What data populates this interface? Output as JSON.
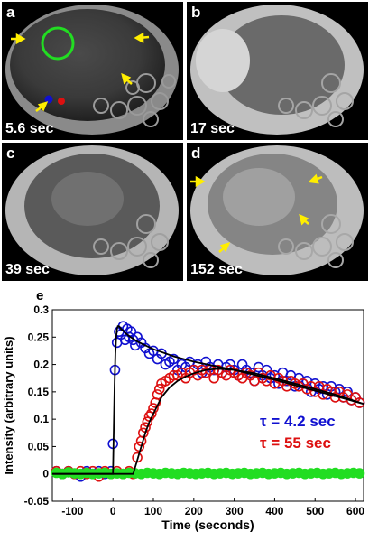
{
  "panels": [
    {
      "label": "a",
      "time": "5.6 sec"
    },
    {
      "label": "b",
      "time": "17 sec"
    },
    {
      "label": "c",
      "time": "39 sec"
    },
    {
      "label": "d",
      "time": "152 sec"
    }
  ],
  "colors": {
    "arrow": "#ffee00",
    "roi_circle": "#22dd22",
    "series_blue": "#1010d0",
    "series_red": "#dd1010",
    "series_green": "#22dd22",
    "fit": "#000000"
  },
  "chart_data": {
    "type": "scatter",
    "panel_label": "e",
    "xlabel": "Time (seconds)",
    "ylabel": "Intensity (arbitrary units)",
    "xlim": [
      -150,
      620
    ],
    "ylim": [
      -0.05,
      0.3
    ],
    "xticks": [
      "-100",
      "0",
      "100",
      "200",
      "300",
      "400",
      "500",
      "600"
    ],
    "yticks": [
      "-0.05",
      "0",
      "0.05",
      "0.1",
      "0.15",
      "0.2",
      "0.25",
      "0.3"
    ],
    "annotations": [
      {
        "text": "τ = 4.2 sec",
        "color": "#1010d0"
      },
      {
        "text": "τ = 55 sec",
        "color": "#dd1010"
      }
    ],
    "series": [
      {
        "color": "#1010d0",
        "marker": "circle-open",
        "x": [
          -140,
          -125,
          -110,
          -95,
          -80,
          -65,
          -50,
          -35,
          -20,
          -5,
          0,
          5,
          10,
          15,
          20,
          25,
          30,
          35,
          40,
          45,
          50,
          55,
          60,
          70,
          80,
          90,
          100,
          110,
          120,
          130,
          140,
          150,
          160,
          170,
          180,
          190,
          200,
          210,
          220,
          230,
          240,
          250,
          260,
          270,
          280,
          290,
          300,
          310,
          320,
          330,
          340,
          350,
          360,
          370,
          380,
          390,
          400,
          410,
          420,
          430,
          440,
          450,
          460,
          470,
          480,
          490,
          500,
          510,
          520,
          530,
          540,
          550,
          560,
          570,
          580,
          590,
          600,
          610
        ],
        "y": [
          0.005,
          0.0,
          0.005,
          0.0,
          -0.005,
          0.005,
          0.0,
          0.005,
          0.0,
          0.005,
          0.055,
          0.19,
          0.24,
          0.26,
          0.255,
          0.27,
          0.245,
          0.265,
          0.25,
          0.26,
          0.245,
          0.235,
          0.25,
          0.24,
          0.23,
          0.22,
          0.225,
          0.21,
          0.22,
          0.2,
          0.205,
          0.21,
          0.19,
          0.2,
          0.195,
          0.205,
          0.19,
          0.2,
          0.185,
          0.205,
          0.195,
          0.19,
          0.2,
          0.185,
          0.195,
          0.2,
          0.19,
          0.18,
          0.2,
          0.19,
          0.185,
          0.17,
          0.195,
          0.18,
          0.19,
          0.175,
          0.18,
          0.165,
          0.185,
          0.17,
          0.18,
          0.16,
          0.175,
          0.165,
          0.17,
          0.15,
          0.165,
          0.155,
          0.16,
          0.145,
          0.16,
          0.15,
          0.155,
          0.14,
          0.15,
          0.135,
          0.14,
          0.13
        ]
      },
      {
        "color": "#dd1010",
        "marker": "circle-open",
        "x": [
          -140,
          -125,
          -110,
          -95,
          -80,
          -65,
          -50,
          -35,
          -20,
          -5,
          10,
          25,
          40,
          50,
          60,
          65,
          70,
          75,
          80,
          85,
          90,
          95,
          100,
          105,
          110,
          115,
          120,
          130,
          140,
          150,
          160,
          170,
          180,
          190,
          200,
          210,
          220,
          230,
          240,
          250,
          260,
          270,
          280,
          290,
          300,
          310,
          320,
          330,
          340,
          350,
          360,
          370,
          380,
          390,
          400,
          410,
          420,
          430,
          440,
          450,
          460,
          470,
          480,
          490,
          500,
          510,
          520,
          530,
          540,
          550,
          560,
          570,
          580,
          590,
          600,
          610
        ],
        "y": [
          0.005,
          0.0,
          0.005,
          0.0,
          0.005,
          0.0,
          0.005,
          -0.005,
          0.005,
          0.0,
          0.005,
          0.0,
          0.005,
          0.0,
          0.03,
          0.05,
          0.06,
          0.075,
          0.085,
          0.095,
          0.105,
          0.11,
          0.12,
          0.13,
          0.145,
          0.155,
          0.165,
          0.17,
          0.175,
          0.18,
          0.18,
          0.185,
          0.175,
          0.185,
          0.19,
          0.18,
          0.19,
          0.185,
          0.19,
          0.175,
          0.19,
          0.185,
          0.18,
          0.19,
          0.185,
          0.18,
          0.175,
          0.185,
          0.18,
          0.17,
          0.185,
          0.175,
          0.17,
          0.18,
          0.165,
          0.175,
          0.17,
          0.16,
          0.17,
          0.165,
          0.16,
          0.165,
          0.155,
          0.16,
          0.15,
          0.16,
          0.145,
          0.155,
          0.15,
          0.14,
          0.15,
          0.14,
          0.145,
          0.135,
          0.14,
          0.13
        ]
      },
      {
        "color": "#22dd22",
        "marker": "circle-filled",
        "x": [
          -140,
          -125,
          -110,
          -95,
          -80,
          -65,
          -50,
          -35,
          -20,
          -5,
          10,
          25,
          40,
          55,
          70,
          85,
          100,
          115,
          130,
          145,
          160,
          175,
          190,
          205,
          220,
          235,
          250,
          265,
          280,
          295,
          310,
          325,
          340,
          355,
          370,
          385,
          400,
          415,
          430,
          445,
          460,
          475,
          490,
          505,
          520,
          535,
          550,
          565,
          580,
          595,
          610
        ],
        "y": [
          0.002,
          0.0,
          0.003,
          0.001,
          0.0,
          0.002,
          0.0,
          0.001,
          0.002,
          0.0,
          0.001,
          0.0,
          0.002,
          0.001,
          0.0,
          0.002,
          0.001,
          0.0,
          0.002,
          0.001,
          0.0,
          0.002,
          0.001,
          0.0,
          0.001,
          0.002,
          0.0,
          0.001,
          0.002,
          0.0,
          0.001,
          0.002,
          0.0,
          0.001,
          0.002,
          0.0,
          0.001,
          0.002,
          0.0,
          0.001,
          0.002,
          0.0,
          0.001,
          0.002,
          0.0,
          0.001,
          0.002,
          0.0,
          0.001,
          0.002,
          0.001
        ]
      }
    ],
    "fits": [
      {
        "color": "#000000",
        "x": [
          -150,
          -5,
          0,
          2,
          4,
          6,
          8,
          10,
          12,
          15,
          20,
          25,
          30,
          35,
          40,
          50,
          60,
          80,
          100,
          150,
          200,
          300,
          400,
          500,
          620
        ],
        "y": [
          0.0,
          0.0,
          0.0,
          0.08,
          0.16,
          0.22,
          0.25,
          0.265,
          0.27,
          0.27,
          0.265,
          0.262,
          0.258,
          0.255,
          0.252,
          0.247,
          0.242,
          0.235,
          0.228,
          0.215,
          0.205,
          0.19,
          0.172,
          0.152,
          0.128
        ]
      },
      {
        "color": "#000000",
        "x": [
          -150,
          50,
          60,
          70,
          80,
          90,
          100,
          110,
          120,
          140,
          160,
          180,
          200,
          230,
          260,
          300,
          350,
          400,
          450,
          500,
          550,
          620
        ],
        "y": [
          0.0,
          0.0,
          0.025,
          0.05,
          0.075,
          0.095,
          0.11,
          0.125,
          0.14,
          0.158,
          0.17,
          0.178,
          0.184,
          0.19,
          0.192,
          0.19,
          0.184,
          0.175,
          0.165,
          0.155,
          0.145,
          0.128
        ]
      }
    ]
  }
}
